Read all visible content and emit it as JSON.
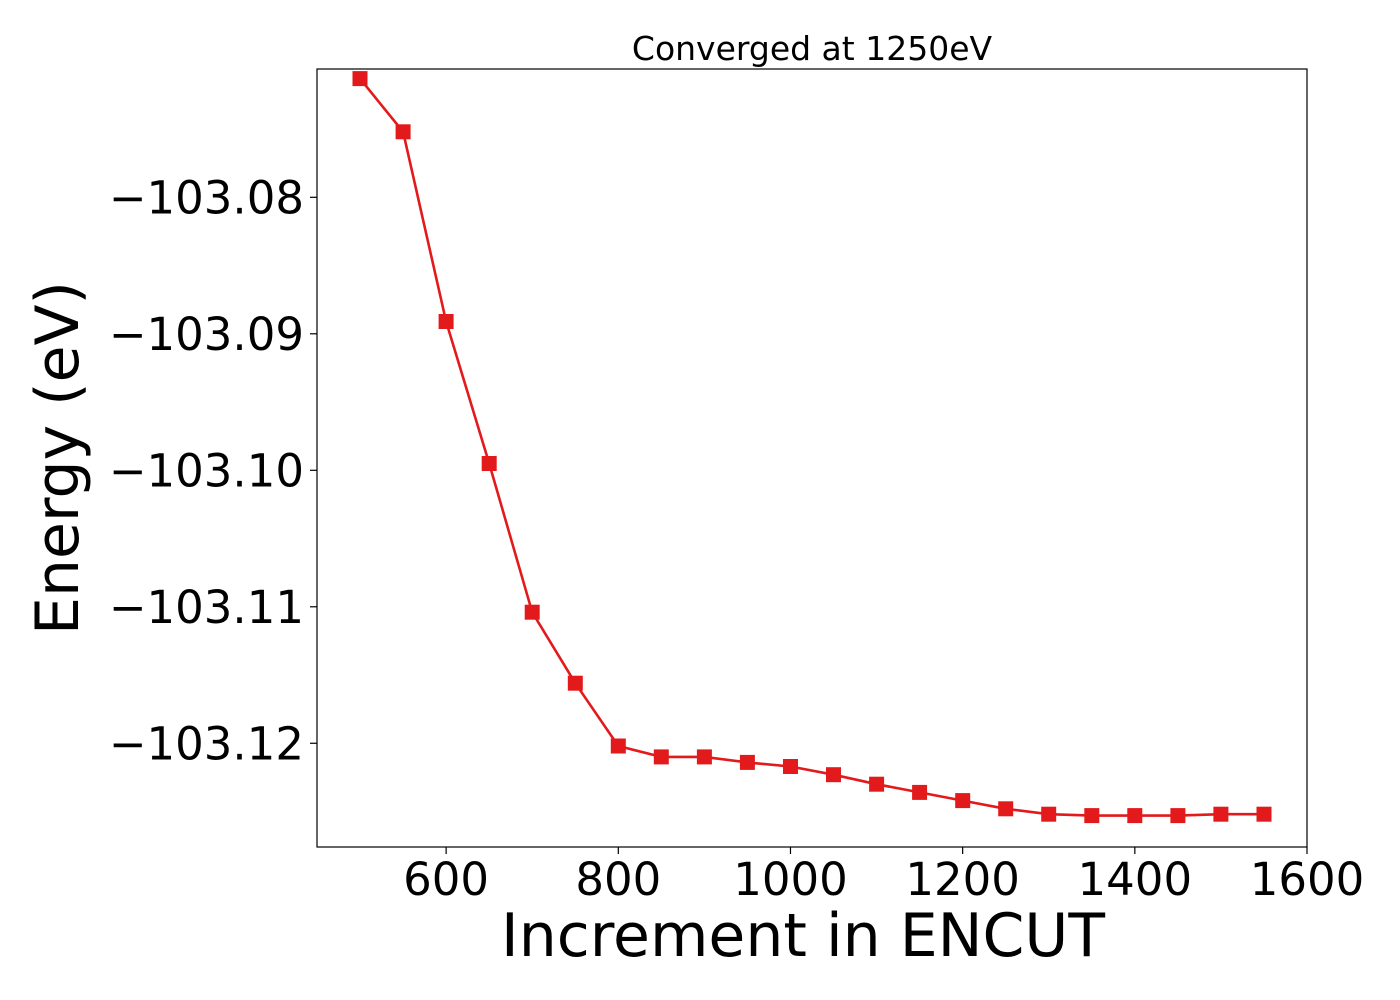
{
  "chart_data": {
    "type": "line",
    "title": "Converged at 1250eV",
    "xlabel": "Increment in ENCUT",
    "ylabel": "Energy (eV)",
    "xlim": [
      450,
      1600
    ],
    "ylim": [
      -103.1276,
      -103.0706
    ],
    "x_ticks": [
      600,
      800,
      1000,
      1200,
      1400,
      1600
    ],
    "x_tick_labels": [
      "600",
      "800",
      "1000",
      "1200",
      "1400",
      "1600"
    ],
    "y_ticks": [
      -103.08,
      -103.09,
      -103.1,
      -103.11,
      -103.12
    ],
    "y_tick_labels": [
      "−103.08",
      "−103.09",
      "−103.10",
      "−103.11",
      "−103.12"
    ],
    "grid": false,
    "series": [
      {
        "color": "#e31a1c",
        "marker": "square",
        "x": [
          500,
          550,
          600,
          650,
          700,
          750,
          800,
          850,
          900,
          950,
          1000,
          1050,
          1100,
          1150,
          1200,
          1250,
          1300,
          1350,
          1400,
          1450,
          1500,
          1550
        ],
        "y": [
          -103.0713,
          -103.0752,
          -103.0891,
          -103.0995,
          -103.1104,
          -103.1156,
          -103.1202,
          -103.121,
          -103.121,
          -103.1214,
          -103.1217,
          -103.1223,
          -103.123,
          -103.1236,
          -103.1242,
          -103.1248,
          -103.1252,
          -103.1253,
          -103.1253,
          -103.1253,
          -103.1252,
          -103.1252
        ]
      }
    ]
  }
}
